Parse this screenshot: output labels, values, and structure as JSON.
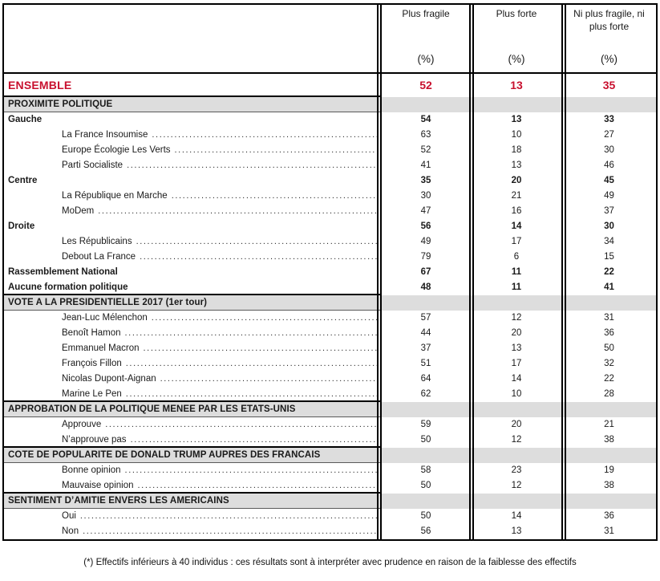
{
  "colors": {
    "accent_red": "#C8102E",
    "section_gray": "#DDDDDD",
    "border_black": "#000000"
  },
  "table": {
    "header": {
      "columns": [
        {
          "title": "Plus fragile",
          "unit": "(%)"
        },
        {
          "title": "Plus forte",
          "unit": "(%)"
        },
        {
          "title": "Ni plus fragile, ni plus forte",
          "unit": "(%)"
        }
      ]
    },
    "ensemble": {
      "label": "ENSEMBLE",
      "values": [
        "52",
        "13",
        "35"
      ]
    },
    "rows": [
      {
        "type": "section",
        "label": "PROXIMITE POLITIQUE"
      },
      {
        "type": "cat",
        "label": "Gauche",
        "values": [
          "54",
          "13",
          "33"
        ]
      },
      {
        "type": "item",
        "label": "La France Insoumise",
        "values": [
          "63",
          "10",
          "27"
        ]
      },
      {
        "type": "item",
        "label": "Europe Écologie Les Verts",
        "values": [
          "52",
          "18",
          "30"
        ]
      },
      {
        "type": "item",
        "label": "Parti Socialiste",
        "values": [
          "41",
          "13",
          "46"
        ]
      },
      {
        "type": "cat",
        "label": "Centre",
        "values": [
          "35",
          "20",
          "45"
        ]
      },
      {
        "type": "item",
        "label": "La République en Marche",
        "values": [
          "30",
          "21",
          "49"
        ]
      },
      {
        "type": "item",
        "label": "MoDem",
        "values": [
          "47",
          "16",
          "37"
        ]
      },
      {
        "type": "cat",
        "label": "Droite",
        "values": [
          "56",
          "14",
          "30"
        ]
      },
      {
        "type": "item",
        "label": "Les Républicains",
        "values": [
          "49",
          "17",
          "34"
        ]
      },
      {
        "type": "item",
        "label": "Debout La France",
        "values": [
          "79",
          "6",
          "15"
        ]
      },
      {
        "type": "cat",
        "label": "Rassemblement National",
        "values": [
          "67",
          "11",
          "22"
        ]
      },
      {
        "type": "cat",
        "label": "Aucune formation politique",
        "values": [
          "48",
          "11",
          "41"
        ]
      },
      {
        "type": "section",
        "label": "VOTE A LA PRESIDENTIELLE 2017 (1er tour)"
      },
      {
        "type": "item",
        "label": "Jean-Luc Mélenchon",
        "values": [
          "57",
          "12",
          "31"
        ]
      },
      {
        "type": "item",
        "label": "Benoît Hamon",
        "values": [
          "44",
          "20",
          "36"
        ]
      },
      {
        "type": "item",
        "label": "Emmanuel Macron",
        "values": [
          "37",
          "13",
          "50"
        ]
      },
      {
        "type": "item",
        "label": "François Fillon",
        "values": [
          "51",
          "17",
          "32"
        ]
      },
      {
        "type": "item",
        "label": "Nicolas Dupont-Aignan",
        "values": [
          "64",
          "14",
          "22"
        ]
      },
      {
        "type": "item",
        "label": "Marine Le Pen",
        "values": [
          "62",
          "10",
          "28"
        ]
      },
      {
        "type": "section",
        "label": "APPROBATION DE LA POLITIQUE MENEE PAR LES ETATS-UNIS"
      },
      {
        "type": "item",
        "label": "Approuve",
        "values": [
          "59",
          "20",
          "21"
        ]
      },
      {
        "type": "item",
        "label": "N’approuve pas",
        "values": [
          "50",
          "12",
          "38"
        ]
      },
      {
        "type": "section",
        "label": "COTE DE POPULARITE DE DONALD TRUMP AUPRES DES FRANCAIS"
      },
      {
        "type": "item",
        "label": "Bonne opinion",
        "values": [
          "58",
          "23",
          "19"
        ]
      },
      {
        "type": "item",
        "label": "Mauvaise opinion",
        "values": [
          "50",
          "12",
          "38"
        ]
      },
      {
        "type": "section",
        "label": "SENTIMENT D’AMITIE ENVERS LES AMERICAINS"
      },
      {
        "type": "item",
        "label": "Oui",
        "values": [
          "50",
          "14",
          "36"
        ]
      },
      {
        "type": "item",
        "label": "Non",
        "values": [
          "56",
          "13",
          "31"
        ]
      }
    ],
    "footnote": "(*) Effectifs inférieurs à 40 individus : ces résultats sont à interpréter avec prudence en raison de la faiblesse des effectifs"
  }
}
